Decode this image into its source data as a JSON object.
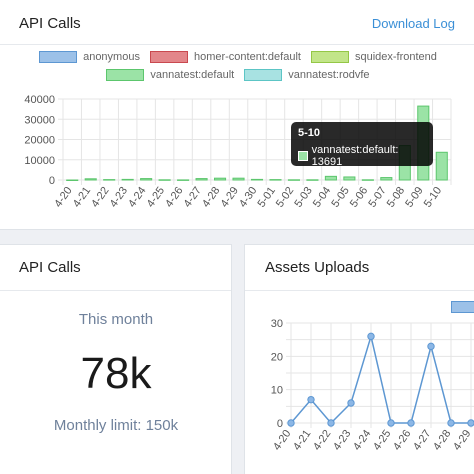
{
  "api_card": {
    "title": "API Calls",
    "download_label": "Download Log",
    "legend": [
      {
        "name": "anonymous",
        "color": "#9cc1e8",
        "border": "#5d97d2"
      },
      {
        "name": "homer-content:default",
        "color": "#e3868a",
        "border": "#c9494f"
      },
      {
        "name": "squidex-frontend",
        "color": "#c2e589",
        "border": "#94c746"
      },
      {
        "name": "vannatest:default",
        "color": "#9be3a6",
        "border": "#5cc66d"
      },
      {
        "name": "vannatest:rodvfe",
        "color": "#a8e2e2",
        "border": "#5cc5c5"
      }
    ],
    "tooltip": {
      "title": "5-10",
      "label": "vannatest:default: 13691"
    }
  },
  "stat_card": {
    "title": "API Calls",
    "period_label": "This month",
    "value": "78k",
    "limit_label": "Monthly limit: 150k"
  },
  "assets_card": {
    "title": "Assets Uploads"
  },
  "chart_data": [
    {
      "type": "bar",
      "categories": [
        "4-20",
        "4-21",
        "4-22",
        "4-23",
        "4-24",
        "4-25",
        "4-26",
        "4-27",
        "4-28",
        "4-29",
        "4-30",
        "5-01",
        "5-02",
        "5-03",
        "5-04",
        "5-05",
        "5-06",
        "5-07",
        "5-08",
        "5-09",
        "5-10"
      ],
      "series": [
        {
          "name": "vannatest:default",
          "values": [
            0,
            600,
            200,
            300,
            700,
            100,
            50,
            700,
            900,
            900,
            300,
            200,
            100,
            100,
            1800,
            1500,
            100,
            1200,
            17000,
            36500,
            13691
          ]
        }
      ],
      "ylim": [
        0,
        40000
      ],
      "yticks": [
        "0",
        "10000",
        "20000",
        "30000",
        "40000"
      ],
      "stacked": true,
      "grid": true,
      "legend": "top"
    },
    {
      "type": "line",
      "categories": [
        "4-20",
        "4-21",
        "4-22",
        "4-23",
        "4-24",
        "4-25",
        "4-26",
        "4-27",
        "4-28",
        "4-29"
      ],
      "series": [
        {
          "values": [
            0,
            7,
            0,
            6,
            26,
            0,
            0,
            23,
            0,
            0
          ]
        }
      ],
      "ylim": [
        0,
        30
      ],
      "yticks": [
        "0",
        "5",
        "10",
        "15",
        "20",
        "25",
        "30"
      ],
      "grid": true,
      "legend": "top-right"
    }
  ]
}
